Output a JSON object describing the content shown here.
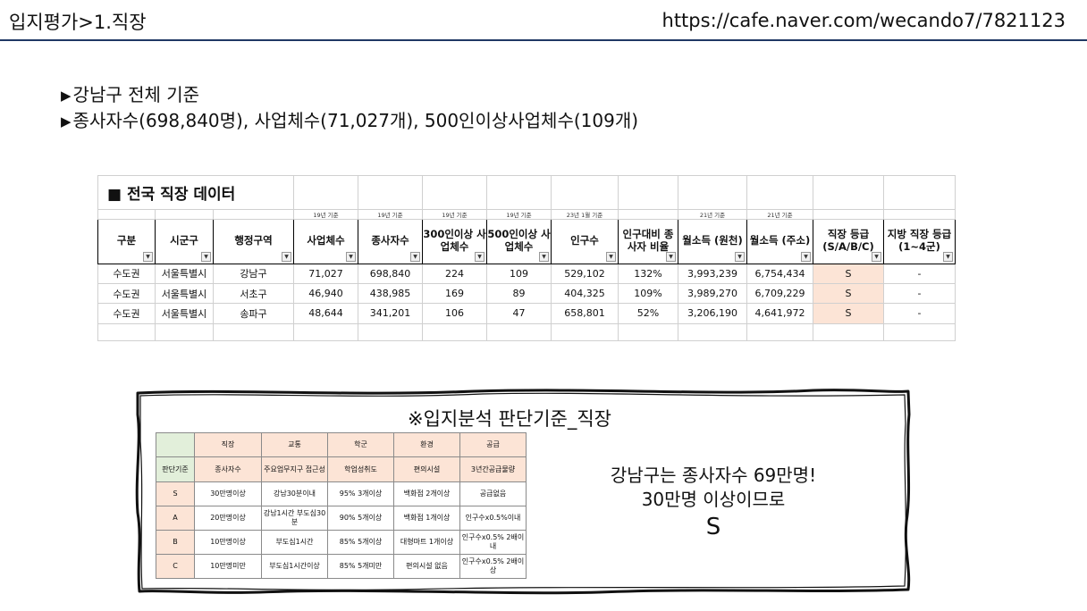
{
  "header": {
    "title": "입지평가>1.직장",
    "url": "https://cafe.naver.com/wecando7/7821123"
  },
  "bullets": {
    "line1": "강남구 전체 기준",
    "line2": "종사자수(698,840명), 사업체수(71,027개), 500인이상사업체수(109개)",
    "marker": "▶"
  },
  "main_table": {
    "title": "■ 전국 직장 데이터",
    "notes": [
      "",
      "",
      "",
      "19년 기준",
      "19년 기준",
      "19년 기준",
      "19년 기준",
      "23년 1월 기준",
      "",
      "21년 기준",
      "21년 기준",
      "",
      ""
    ],
    "headers": [
      "구분",
      "시군구",
      "행정구역",
      "사업체수",
      "종사자수",
      "300인이상 사업체수",
      "500인이상 사업체수",
      "인구수",
      "인구대비 종사자 비율",
      "월소득 (원천)",
      "월소득 (주소)",
      "직장 등급 (S/A/B/C)",
      "지방 직장 등급 (1~4군)"
    ],
    "rows": [
      [
        "수도권",
        "서울특별시",
        "강남구",
        "71,027",
        "698,840",
        "224",
        "109",
        "529,102",
        "132%",
        "3,993,239",
        "6,754,434",
        "S",
        "-"
      ],
      [
        "수도권",
        "서울특별시",
        "서초구",
        "46,940",
        "438,985",
        "169",
        "89",
        "404,325",
        "109%",
        "3,989,270",
        "6,709,229",
        "S",
        "-"
      ],
      [
        "수도권",
        "서울특별시",
        "송파구",
        "48,644",
        "341,201",
        "106",
        "47",
        "658,801",
        "52%",
        "3,206,190",
        "4,641,972",
        "S",
        "-"
      ]
    ]
  },
  "criteria": {
    "title": "※입지분석 판단기준_직장",
    "header": [
      "",
      "직장",
      "교통",
      "학군",
      "환경",
      "공급"
    ],
    "subheader": [
      "판단기준",
      "종사자수",
      "주요업무지구 접근성",
      "학업성취도",
      "편의시설",
      "3년간공급물량"
    ],
    "rows": [
      [
        "S",
        "30만명이상",
        "강남30분이내",
        "95% 3개이상",
        "백화점 2개이상",
        "공급없음"
      ],
      [
        "A",
        "20만명이상",
        "강남1시간 부도심30분",
        "90% 5개이상",
        "백화점 1개이상",
        "인구수x0.5%이내"
      ],
      [
        "B",
        "10만명이상",
        "부도심1시간",
        "85% 5개이상",
        "대형마트 1개이상",
        "인구수x0.5% 2배이내"
      ],
      [
        "C",
        "10만명미만",
        "부도심1시간이상",
        "85% 5개미만",
        "편의시설 없음",
        "인구수x0.5% 2배이상"
      ]
    ]
  },
  "annotation": {
    "line1": "강남구는 종사자수 69만명!",
    "line2": "30만명 이상이므로",
    "grade": "S"
  }
}
